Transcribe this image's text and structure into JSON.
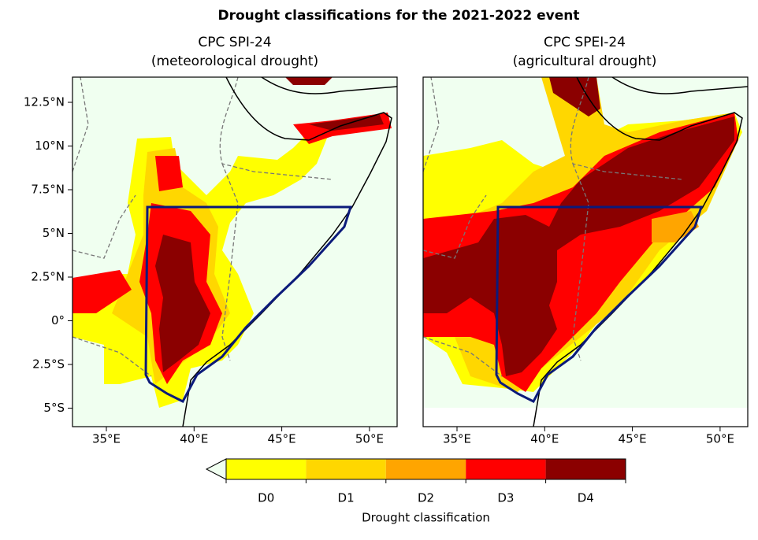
{
  "title": "Drought classifications for the 2021-2022 event",
  "panels": [
    {
      "title": "CPC SPI-24",
      "subtitle": "(meteorological drought)"
    },
    {
      "title": "CPC SPEI-24",
      "subtitle": "(agricultural drought)"
    }
  ],
  "lat_ticks": [
    "12.5°N",
    "10°N",
    "7.5°N",
    "5°N",
    "2.5°N",
    "0°",
    "2.5°S",
    "5°S"
  ],
  "lon_ticks": [
    "35°E",
    "40°E",
    "45°E",
    "50°E"
  ],
  "colorbar": {
    "title": "Drought classification",
    "classes": [
      {
        "label": "D0",
        "color": "#ffff00"
      },
      {
        "label": "D1",
        "color": "#ffd700"
      },
      {
        "label": "D2",
        "color": "#ffa500"
      },
      {
        "label": "D3",
        "color": "#ff0000"
      },
      {
        "label": "D4",
        "color": "#8b0000"
      }
    ]
  }
}
